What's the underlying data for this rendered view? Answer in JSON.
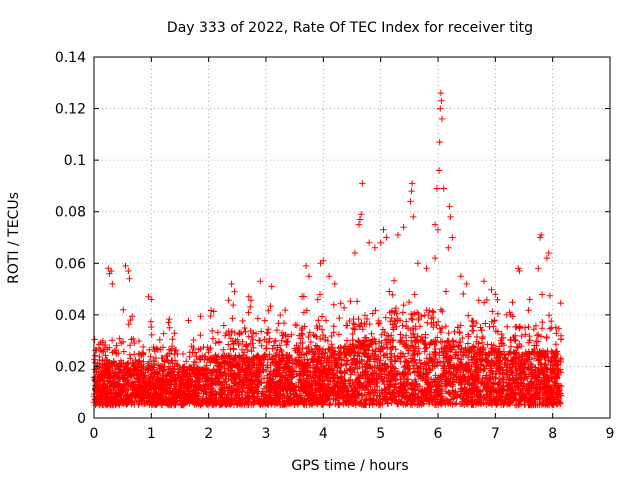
{
  "chart_data": {
    "type": "scatter",
    "title": "Day 333 of 2022, Rate Of TEC Index for receiver titg",
    "xlabel": "GPS time / hours",
    "ylabel": "ROTI / TECUs",
    "xlim": [
      0,
      9
    ],
    "ylim": [
      0,
      0.14
    ],
    "x_ticks": [
      "0",
      "1",
      "2",
      "3",
      "4",
      "5",
      "6",
      "7",
      "8",
      "9"
    ],
    "y_ticks": [
      "0",
      "0.02",
      "0.04",
      "0.06",
      "0.08",
      "0.1",
      "0.12",
      "0.14"
    ],
    "x_tick_values": [
      0,
      1,
      2,
      3,
      4,
      5,
      6,
      7,
      8,
      9
    ],
    "y_tick_values": [
      0,
      0.02,
      0.04,
      0.06,
      0.08,
      0.1,
      0.12,
      0.14
    ],
    "grid": true,
    "marker": "plus",
    "series_color": "#ff0000",
    "data_range_x": [
      0,
      8.15
    ],
    "highlighted_points": [
      {
        "x": 6.05,
        "y": 0.126
      },
      {
        "x": 6.06,
        "y": 0.123
      },
      {
        "x": 6.04,
        "y": 0.12
      },
      {
        "x": 6.07,
        "y": 0.116
      },
      {
        "x": 6.03,
        "y": 0.107
      },
      {
        "x": 6.02,
        "y": 0.096
      },
      {
        "x": 5.98,
        "y": 0.089
      },
      {
        "x": 6.1,
        "y": 0.089
      },
      {
        "x": 4.68,
        "y": 0.091
      },
      {
        "x": 5.55,
        "y": 0.091
      },
      {
        "x": 5.54,
        "y": 0.088
      },
      {
        "x": 5.52,
        "y": 0.084
      },
      {
        "x": 4.66,
        "y": 0.079
      },
      {
        "x": 4.64,
        "y": 0.077
      },
      {
        "x": 4.62,
        "y": 0.075
      },
      {
        "x": 5.57,
        "y": 0.078
      },
      {
        "x": 6.2,
        "y": 0.082
      },
      {
        "x": 6.22,
        "y": 0.078
      },
      {
        "x": 5.95,
        "y": 0.075
      },
      {
        "x": 6.0,
        "y": 0.073
      },
      {
        "x": 6.25,
        "y": 0.07
      },
      {
        "x": 6.18,
        "y": 0.066
      },
      {
        "x": 7.8,
        "y": 0.071
      },
      {
        "x": 7.78,
        "y": 0.07
      },
      {
        "x": 7.93,
        "y": 0.064
      },
      {
        "x": 7.9,
        "y": 0.062
      },
      {
        "x": 4.8,
        "y": 0.068
      },
      {
        "x": 4.9,
        "y": 0.066
      },
      {
        "x": 5.05,
        "y": 0.073
      },
      {
        "x": 5.1,
        "y": 0.07
      },
      {
        "x": 5.3,
        "y": 0.071
      },
      {
        "x": 5.4,
        "y": 0.074
      },
      {
        "x": 5.0,
        "y": 0.068
      },
      {
        "x": 4.55,
        "y": 0.064
      },
      {
        "x": 4.0,
        "y": 0.061
      },
      {
        "x": 3.95,
        "y": 0.06
      },
      {
        "x": 3.7,
        "y": 0.059
      },
      {
        "x": 3.75,
        "y": 0.055
      },
      {
        "x": 0.55,
        "y": 0.059
      },
      {
        "x": 0.6,
        "y": 0.057
      },
      {
        "x": 0.62,
        "y": 0.054
      },
      {
        "x": 0.25,
        "y": 0.058
      },
      {
        "x": 0.27,
        "y": 0.056
      },
      {
        "x": 0.3,
        "y": 0.057
      },
      {
        "x": 0.32,
        "y": 0.052
      },
      {
        "x": 7.4,
        "y": 0.058
      },
      {
        "x": 7.42,
        "y": 0.057
      },
      {
        "x": 7.75,
        "y": 0.058
      },
      {
        "x": 5.95,
        "y": 0.062
      },
      {
        "x": 6.4,
        "y": 0.055
      },
      {
        "x": 6.5,
        "y": 0.052
      },
      {
        "x": 5.65,
        "y": 0.06
      },
      {
        "x": 5.8,
        "y": 0.058
      },
      {
        "x": 4.1,
        "y": 0.055
      },
      {
        "x": 4.2,
        "y": 0.052
      },
      {
        "x": 3.1,
        "y": 0.051
      },
      {
        "x": 2.4,
        "y": 0.052
      },
      {
        "x": 2.45,
        "y": 0.049
      },
      {
        "x": 2.7,
        "y": 0.047
      },
      {
        "x": 2.9,
        "y": 0.053
      },
      {
        "x": 0.95,
        "y": 0.047
      },
      {
        "x": 1.0,
        "y": 0.046
      },
      {
        "x": 1.3,
        "y": 0.037
      },
      {
        "x": 1.32,
        "y": 0.035
      },
      {
        "x": 7.0,
        "y": 0.048
      },
      {
        "x": 6.8,
        "y": 0.053
      },
      {
        "x": 7.6,
        "y": 0.046
      },
      {
        "x": 7.2,
        "y": 0.04
      },
      {
        "x": 7.25,
        "y": 0.041
      }
    ]
  }
}
